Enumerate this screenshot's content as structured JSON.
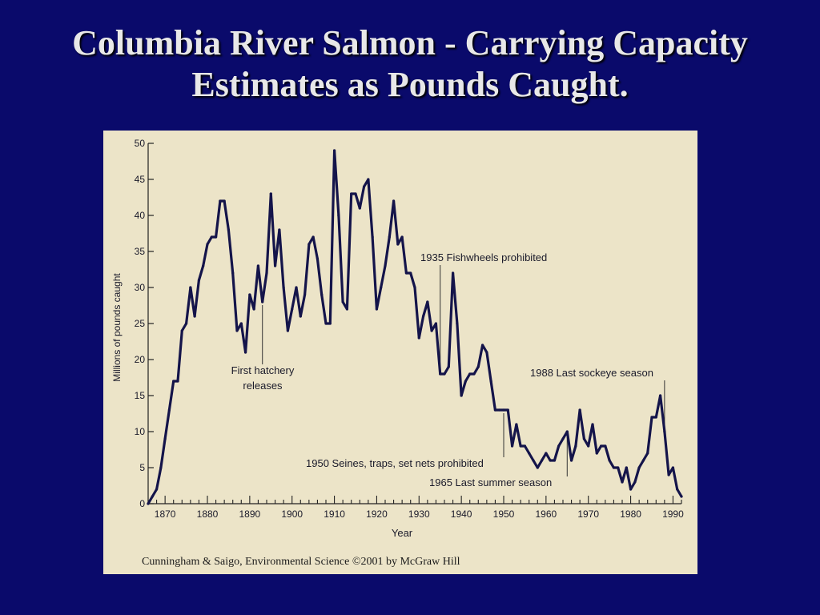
{
  "slide": {
    "title_line1": "Columbia River Salmon - Carrying Capacity",
    "title_line2": "Estimates as Pounds Caught."
  },
  "credit": "Cunningham & Saigo, Environmental Science  ©2001 by McGraw Hill",
  "colors": {
    "background": "#0a0a6b",
    "figure": "#ece4c8",
    "line": "#14144a"
  },
  "chart_data": {
    "type": "line",
    "xlabel": "Year",
    "ylabel": "Millions of pounds caught",
    "xlim": [
      1866,
      1992
    ],
    "ylim": [
      0,
      50
    ],
    "xticks": [
      1870,
      1880,
      1890,
      1900,
      1910,
      1920,
      1930,
      1940,
      1950,
      1960,
      1970,
      1980,
      1990
    ],
    "yticks": [
      0,
      5,
      10,
      15,
      20,
      25,
      30,
      35,
      40,
      45,
      50
    ],
    "grid": false,
    "series": [
      {
        "x": [
          1866,
          1867,
          1868,
          1869,
          1870,
          1871,
          1872,
          1873,
          1874,
          1875,
          1876,
          1877,
          1878,
          1879,
          1880,
          1881,
          1882,
          1883,
          1884,
          1885,
          1886,
          1887,
          1888,
          1889,
          1890,
          1891,
          1892,
          1893,
          1894,
          1895,
          1896,
          1897,
          1898,
          1899,
          1900,
          1901,
          1902,
          1903,
          1904,
          1905,
          1906,
          1907,
          1908,
          1909,
          1910,
          1911,
          1912,
          1913,
          1914,
          1915,
          1916,
          1917,
          1918,
          1919,
          1920,
          1921,
          1922,
          1923,
          1924,
          1925,
          1926,
          1927,
          1928,
          1929,
          1930,
          1931,
          1932,
          1933,
          1934,
          1935,
          1936,
          1937,
          1938,
          1939,
          1940,
          1941,
          1942,
          1943,
          1944,
          1945,
          1946,
          1947,
          1948,
          1949,
          1950,
          1951,
          1952,
          1953,
          1954,
          1955,
          1956,
          1957,
          1958,
          1959,
          1960,
          1961,
          1962,
          1963,
          1964,
          1965,
          1966,
          1967,
          1968,
          1969,
          1970,
          1971,
          1972,
          1973,
          1974,
          1975,
          1976,
          1977,
          1978,
          1979,
          1980,
          1981,
          1982,
          1983,
          1984,
          1985,
          1986,
          1987,
          1988,
          1989,
          1990,
          1991,
          1992
        ],
        "y": [
          0,
          1,
          2,
          5,
          9,
          13,
          17,
          17,
          24,
          25,
          30,
          26,
          31,
          33,
          36,
          37,
          37,
          42,
          42,
          38,
          32,
          24,
          25,
          21,
          29,
          27,
          33,
          28,
          32,
          43,
          33,
          38,
          30,
          24,
          27,
          30,
          26,
          29,
          36,
          37,
          34,
          29,
          25,
          25,
          49,
          40,
          28,
          27,
          43,
          43,
          41,
          44,
          45,
          37,
          27,
          30,
          33,
          37,
          42,
          36,
          37,
          32,
          32,
          30,
          23,
          26,
          28,
          24,
          25,
          18,
          18,
          19,
          32,
          25,
          15,
          17,
          18,
          18,
          19,
          22,
          21,
          17,
          13,
          13,
          13,
          13,
          8,
          11,
          8,
          8,
          7,
          6,
          5,
          6,
          7,
          6,
          6,
          8,
          9,
          10,
          6,
          8,
          13,
          9,
          8,
          11,
          7,
          8,
          8,
          6,
          5,
          5,
          3,
          5,
          2,
          3,
          5,
          6,
          7,
          12,
          12,
          15,
          10,
          4,
          5,
          2,
          1
        ]
      }
    ],
    "annotations": [
      {
        "text": "First hatchery",
        "x": 1893
      },
      {
        "text": "releases",
        "x": 1893
      },
      {
        "text": "1935 Fishwheels prohibited",
        "x": 1935
      },
      {
        "text": "1950 Seines, traps, set nets prohibited",
        "x": 1950
      },
      {
        "text": "1965 Last summer season",
        "x": 1965
      },
      {
        "text": "1988 Last sockeye season",
        "x": 1988
      }
    ]
  }
}
